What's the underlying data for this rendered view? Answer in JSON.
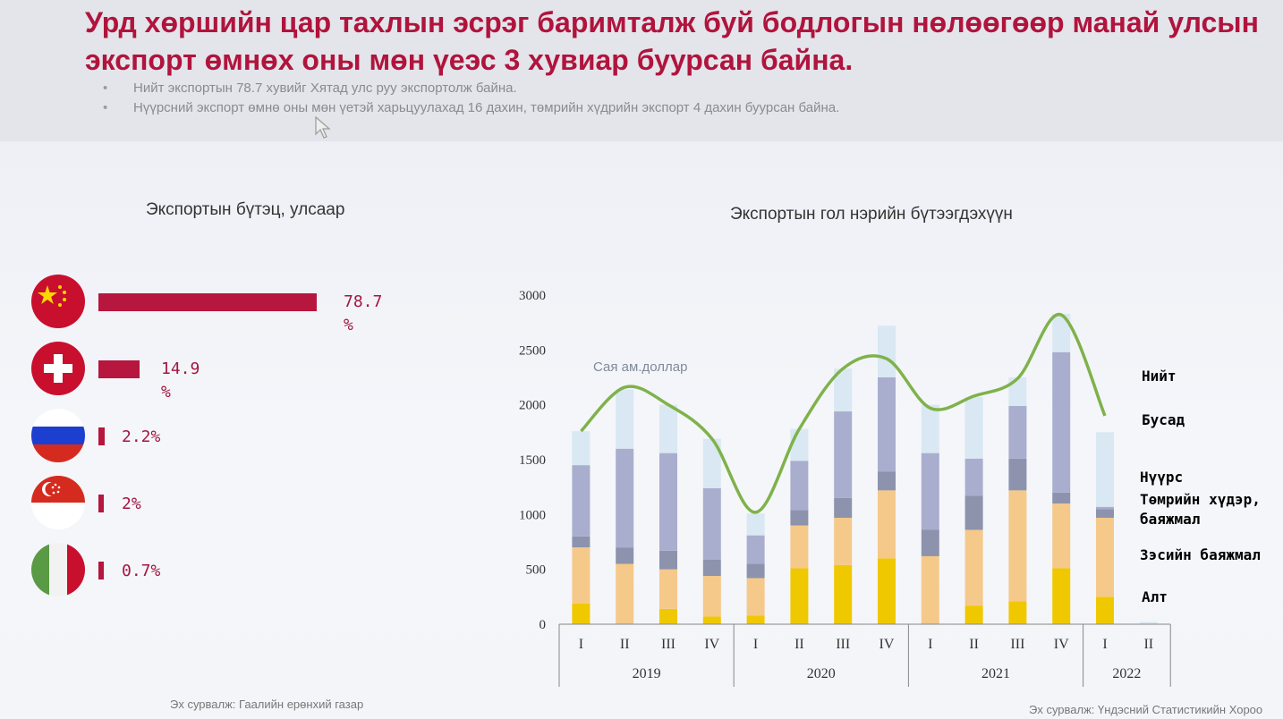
{
  "header": {
    "title": "Урд хөршийн цар тахлын эсрэг баримталж буй бодлогын нөлөөгөөр манай улсын экспорт өмнөх оны мөн үеэс 3 хувиар буурсан байна.",
    "bullets": [
      "Нийт экспортын 78.7 хувийг Хятад улс руу экспортолж байна.",
      "Нүүрсний экспорт өмнө оны мөн үетэй харьцуулахад 16 дахин, төмрийн хүдрийн экспорт 4 дахин буурсан байна."
    ]
  },
  "left_panel": {
    "title": "Экспортын бүтэц, улсаар",
    "source": "Эх сурвалж: Гаалийн ерөнхий газар"
  },
  "right_panel": {
    "source": "Эх сурвалж: Үндэсний Статистикийн Хороо"
  },
  "colors": {
    "accent": "#b0143c",
    "bar": "#b7163f",
    "gold": "#f0c800",
    "copper": "#f5c98a",
    "iron": "#8d93ad",
    "coal": "#a9aece",
    "other": "#d9e8f2",
    "total_line": "#7fb24a"
  },
  "chart_data": [
    {
      "type": "bar",
      "orientation": "horizontal",
      "title": "Экспортын бүтэц, улсаар",
      "categories": [
        "china-flag-icon",
        "switzerland-flag-icon",
        "russia-flag-icon",
        "singapore-flag-icon",
        "italy-flag-icon"
      ],
      "values": [
        78.7,
        14.9,
        2.2,
        2,
        0.7
      ],
      "labels": [
        "78.7 %",
        "14.9 %",
        "2.2%",
        "2%",
        "0.7%"
      ]
    },
    {
      "type": "bar",
      "stacked": true,
      "title": "Экспортын гол нэрийн бүтээгдэхүүн",
      "unit_label": "Сая ам.доллар",
      "categories": [
        "I",
        "II",
        "III",
        "IV",
        "I",
        "II",
        "III",
        "IV",
        "I",
        "II",
        "III",
        "IV",
        "I",
        "II"
      ],
      "groups": [
        {
          "label": "2019",
          "count": 4
        },
        {
          "label": "2020",
          "count": 4
        },
        {
          "label": "2021",
          "count": 4
        },
        {
          "label": "2022",
          "count": 2
        }
      ],
      "ylim": [
        0,
        3000
      ],
      "yticks": [
        0,
        500,
        1000,
        1500,
        2000,
        2500,
        3000
      ],
      "series": [
        {
          "name": "Алт",
          "color": "#f0c800",
          "values": [
            190,
            0,
            140,
            70,
            80,
            510,
            540,
            600,
            0,
            170,
            210,
            510,
            250,
            0
          ]
        },
        {
          "name": "Зэсийн баяжмал",
          "color": "#f5c98a",
          "values": [
            510,
            550,
            360,
            370,
            340,
            390,
            430,
            620,
            620,
            690,
            1010,
            590,
            720,
            0
          ]
        },
        {
          "name": "Төмрийн хүдэр, баяжмал",
          "color": "#8d93ad",
          "values": [
            100,
            150,
            170,
            150,
            130,
            140,
            180,
            170,
            240,
            310,
            290,
            100,
            80,
            0
          ]
        },
        {
          "name": "Нүүрс",
          "color": "#a9aece",
          "values": [
            650,
            900,
            890,
            650,
            260,
            450,
            790,
            860,
            700,
            340,
            480,
            1280,
            20,
            0
          ]
        },
        {
          "name": "Бусад",
          "color": "#d9e8f2",
          "values": [
            310,
            540,
            440,
            450,
            200,
            290,
            390,
            470,
            440,
            560,
            260,
            350,
            680,
            20
          ]
        }
      ],
      "total": {
        "name": "Нийт",
        "color": "#7fb24a",
        "values": [
          1760,
          2160,
          2000,
          1690,
          1020,
          1780,
          2330,
          2420,
          1970,
          2080,
          2240,
          2820,
          1900,
          null
        ]
      }
    }
  ]
}
